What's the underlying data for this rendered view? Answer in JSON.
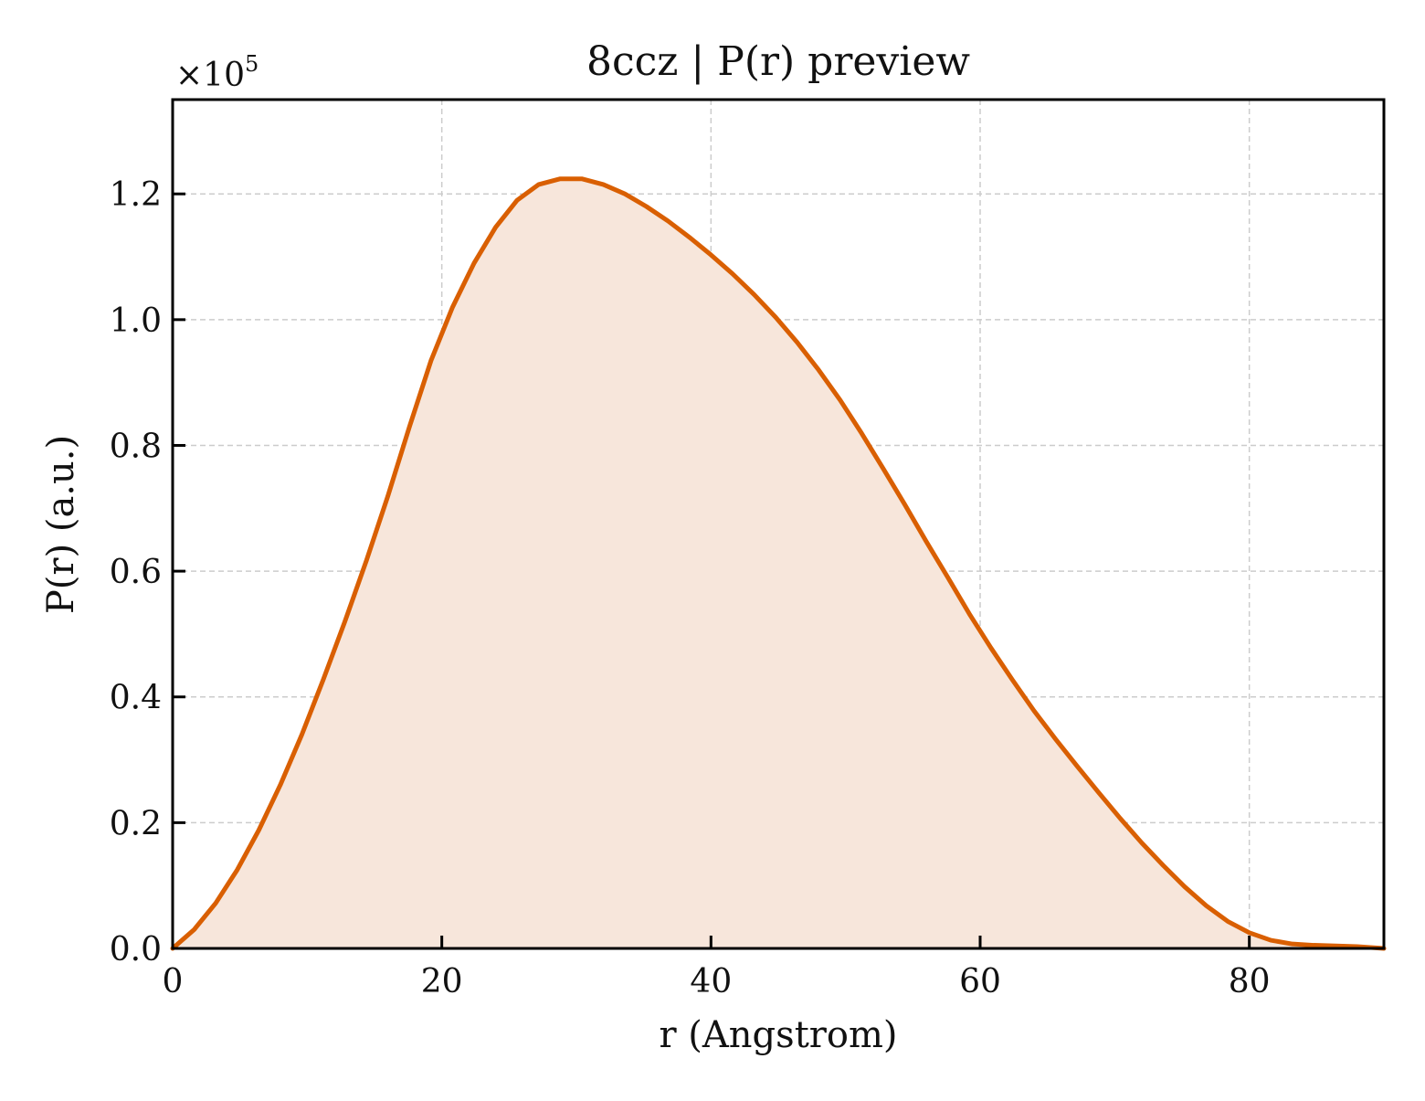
{
  "chart_data": {
    "type": "area",
    "title": "8ccz | P(r) preview",
    "xlabel": "r (Angstrom)",
    "ylabel": "P(r) (a.u.)",
    "y_multiplier": {
      "base": "×10",
      "exponent": "5"
    },
    "xlim": [
      0,
      90
    ],
    "ylim": [
      0,
      1.35
    ],
    "xticks": [
      0,
      20,
      40,
      60,
      80
    ],
    "xtick_labels": [
      "0",
      "20",
      "40",
      "60",
      "80"
    ],
    "yticks": [
      0.0,
      0.2,
      0.4,
      0.6,
      0.8,
      1.0,
      1.2
    ],
    "ytick_labels": [
      "0.0",
      "0.2",
      "0.4",
      "0.6",
      "0.8",
      "1.0",
      "1.2"
    ],
    "grid": true,
    "legend": "none",
    "series": [
      {
        "color": "#d95f02",
        "fill_color": "#f7e6db",
        "x": [
          0,
          1.6,
          3.2,
          4.8,
          6.4,
          8.0,
          9.6,
          11.2,
          12.8,
          14.4,
          16.0,
          17.6,
          19.2,
          20.8,
          22.4,
          24.0,
          25.6,
          27.2,
          28.8,
          30.4,
          32.0,
          33.6,
          35.2,
          36.8,
          38.4,
          40.0,
          41.6,
          43.2,
          44.8,
          46.4,
          48.0,
          49.6,
          51.2,
          52.8,
          54.4,
          56.0,
          57.6,
          59.2,
          60.8,
          62.4,
          64.0,
          65.6,
          67.2,
          68.8,
          70.4,
          72.0,
          73.6,
          75.2,
          76.8,
          78.4,
          80.0,
          81.6,
          83.2,
          84.8,
          86.4,
          88.0,
          90.0
        ],
        "y": [
          0.0,
          0.03,
          0.072,
          0.125,
          0.188,
          0.26,
          0.34,
          0.428,
          0.52,
          0.617,
          0.72,
          0.83,
          0.935,
          1.02,
          1.09,
          1.147,
          1.19,
          1.215,
          1.224,
          1.224,
          1.215,
          1.2,
          1.18,
          1.157,
          1.131,
          1.103,
          1.073,
          1.04,
          1.004,
          0.964,
          0.92,
          0.872,
          0.819,
          0.763,
          0.706,
          0.647,
          0.59,
          0.532,
          0.478,
          0.427,
          0.378,
          0.333,
          0.29,
          0.248,
          0.207,
          0.168,
          0.132,
          0.098,
          0.068,
          0.043,
          0.025,
          0.013,
          0.007,
          0.005,
          0.004,
          0.003,
          0.0
        ]
      }
    ]
  }
}
